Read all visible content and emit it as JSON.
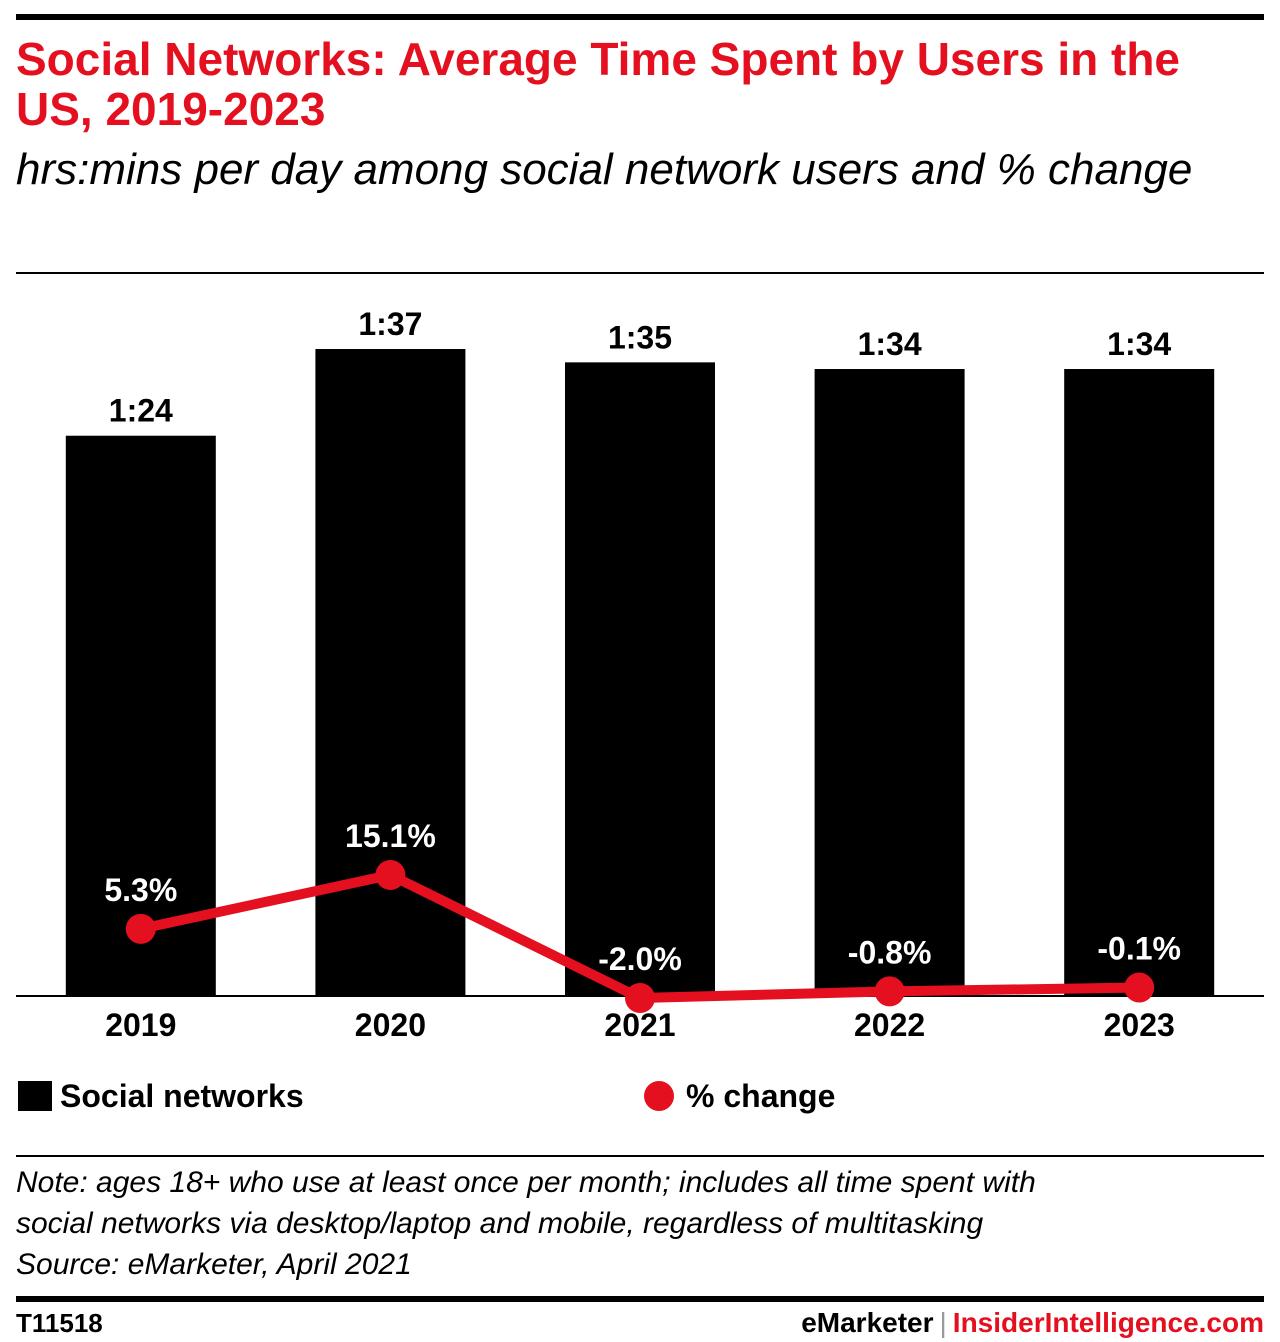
{
  "header": {
    "title": "Social Networks: Average Time Spent by Users in the US, 2019-2023",
    "subtitle": "hrs:mins per day among social network users and % change"
  },
  "chart_data": {
    "type": "bar",
    "categories": [
      "2019",
      "2020",
      "2021",
      "2022",
      "2023"
    ],
    "series": [
      {
        "name": "Social networks",
        "type": "bar",
        "values": [
          84,
          97,
          95,
          94,
          94
        ],
        "labels": [
          "1:24",
          "1:37",
          "1:35",
          "1:34",
          "1:34"
        ],
        "color": "#000000"
      },
      {
        "name": "% change",
        "type": "line",
        "values": [
          5.3,
          15.1,
          -2.0,
          -0.8,
          -0.1
        ],
        "labels": [
          "5.3%",
          "15.1%",
          "-2.0%",
          "-0.8%",
          "-0.1%"
        ],
        "color": "#e4101f"
      }
    ],
    "legend_position": "bottom",
    "grid": false
  },
  "legend": {
    "bar_label": "Social networks",
    "line_label": "% change"
  },
  "note": {
    "line1": "Note: ages 18+ who use at least once per month; includes all time spent with",
    "line2": "social networks via desktop/laptop and mobile, regardless of multitasking",
    "source": "Source: eMarketer, April 2021"
  },
  "footer": {
    "chart_id": "T11518",
    "brand_left": "eMarketer",
    "separator": "|",
    "brand_right": "InsiderIntelligence.com"
  },
  "colors": {
    "accent": "#e4101f",
    "bar": "#000000"
  }
}
